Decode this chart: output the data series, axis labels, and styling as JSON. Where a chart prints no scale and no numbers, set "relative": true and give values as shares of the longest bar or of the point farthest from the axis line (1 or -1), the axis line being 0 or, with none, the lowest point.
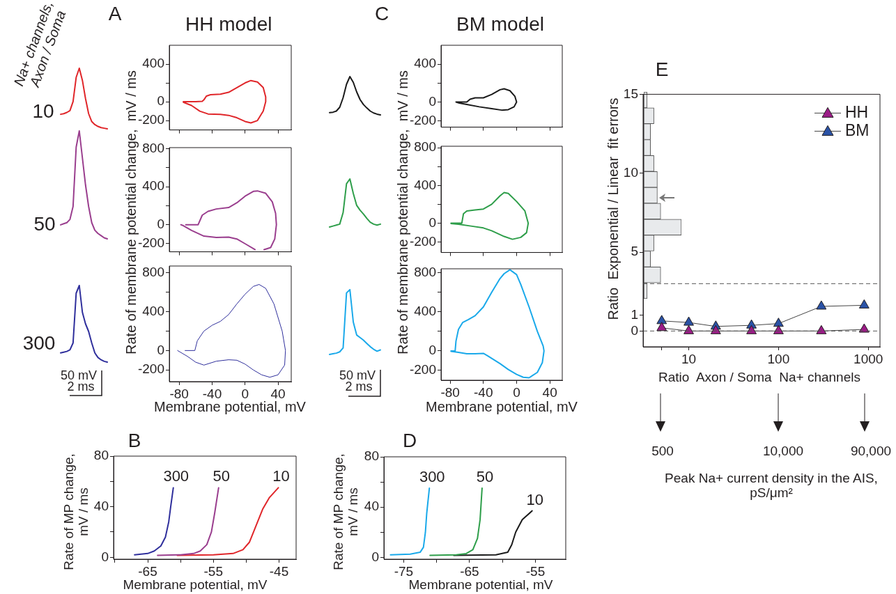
{
  "chart_data": [
    {
      "type": "line",
      "relative": true,
      "categories": [
        null,
        null,
        null,
        null,
        null,
        null,
        null,
        null,
        null,
        null,
        null,
        null,
        null,
        null,
        null,
        null
      ],
      "annotations": [
        "Na+ channels, Axon / Soma",
        "10"
      ],
      "series": [
        {
          "color": "#e0262a",
          "values": [
            0.24,
            0.25,
            0.27,
            0.3,
            0.45,
            0.85,
            1.0,
            0.8,
            0.5,
            0.25,
            0.12,
            0.07,
            0.04,
            0.02,
            0.01,
            0
          ]
        }
      ]
    },
    {
      "type": "line",
      "relative": true,
      "categories": [
        null,
        null,
        null,
        null,
        null,
        null,
        null,
        null,
        null,
        null,
        null,
        null,
        null,
        null,
        null,
        null
      ],
      "annotations": [
        "50"
      ],
      "series": [
        {
          "color": "#9a3e8e",
          "values": [
            0.13,
            0.14,
            0.15,
            0.18,
            0.3,
            0.85,
            1.0,
            0.75,
            0.5,
            0.3,
            0.15,
            0.08,
            0.05,
            0.03,
            0.01,
            0
          ]
        }
      ]
    },
    {
      "type": "line",
      "relative": true,
      "categories": [
        null,
        null,
        null,
        null,
        null,
        null,
        null,
        null,
        null,
        null,
        null,
        null,
        null,
        null,
        null,
        null
      ],
      "annotations": [
        "300",
        "50 mV",
        "2 ms"
      ],
      "series": [
        {
          "color": "#2f2f9c",
          "values": [
            0.12,
            0.13,
            0.14,
            0.16,
            0.25,
            0.9,
            1.0,
            0.65,
            0.5,
            0.4,
            0.25,
            0.12,
            0.06,
            0.03,
            0.01,
            0
          ]
        }
      ]
    },
    {
      "type": "line",
      "title": "HH model",
      "annotations": [
        "A"
      ],
      "xlim": [
        -92,
        56
      ],
      "ylim": [
        -300,
        600
      ],
      "xticks": [
        -80,
        -40,
        0,
        40
      ],
      "yticks": [
        -200,
        0,
        {
          "value": 200,
          "label": null
        },
        400
      ],
      "tick_labels": "y",
      "series": [
        {
          "color": "#e0262a",
          "x": [
            -75,
            -60,
            -52,
            -50,
            -47,
            -42,
            -30,
            -20,
            -10,
            0,
            7,
            15,
            22,
            25,
            25,
            22,
            15,
            7,
            0,
            -10,
            -20,
            -30,
            -45,
            -55,
            -65,
            -75
          ],
          "values": [
            0,
            0,
            5,
            20,
            60,
            75,
            80,
            100,
            150,
            200,
            225,
            210,
            150,
            50,
            0,
            -100,
            -200,
            -225,
            -210,
            -170,
            -145,
            -135,
            -130,
            -100,
            -40,
            -5
          ]
        }
      ]
    },
    {
      "type": "line",
      "ylabel": "Rate of membrane potential change,  mV / ms",
      "xlim": [
        -92,
        56
      ],
      "ylim": [
        -285,
        810
      ],
      "xticks": [
        -80,
        -40,
        0,
        40
      ],
      "yticks": [
        -200,
        0,
        {
          "value": 200,
          "label": null
        },
        400,
        {
          "value": 600,
          "label": null
        },
        800
      ],
      "tick_labels": "y",
      "series": [
        {
          "color": "#9a3e8e",
          "x": [
            -72,
            -57,
            -52,
            -45,
            -35,
            -20,
            -10,
            0,
            10,
            15,
            25,
            33,
            37,
            38,
            36,
            31,
            23,
            17,
            12,
            0,
            -10,
            -20,
            -35,
            -50,
            -65,
            -75,
            -78
          ],
          "values": [
            0,
            0,
            100,
            140,
            165,
            180,
            230,
            300,
            350,
            355,
            330,
            240,
            120,
            0,
            -150,
            -240,
            -262,
            null,
            -262,
            -200,
            -150,
            -130,
            -135,
            -120,
            -60,
            -10,
            0
          ]
        }
      ]
    },
    {
      "type": "line",
      "xlabel": "Membrane potential, mV",
      "xlim": [
        -92,
        56
      ],
      "ylim": [
        -320,
        870
      ],
      "xticks": [
        -80,
        -40,
        0,
        40
      ],
      "yticks": [
        -200,
        0,
        {
          "value": 200,
          "label": null
        },
        400,
        {
          "value": 600,
          "label": null
        },
        800
      ],
      "series": [
        {
          "color": "#2f2f9c",
          "x": [
            -73,
            -61,
            -58,
            -50,
            -40,
            -30,
            -20,
            -10,
            0,
            10,
            17,
            25,
            35,
            45,
            49,
            48,
            40,
            30,
            20,
            10,
            0,
            -10,
            -20,
            -35,
            -50,
            -60,
            -70,
            -82
          ],
          "values": [
            0,
            0,
            100,
            200,
            260,
            300,
            370,
            480,
            580,
            660,
            680,
            640,
            480,
            200,
            0,
            -150,
            -250,
            -275,
            -250,
            -200,
            -140,
            -100,
            -95,
            -110,
            -150,
            -120,
            -60,
            0
          ]
        }
      ]
    },
    {
      "type": "line",
      "relative": true,
      "categories": [
        null,
        null,
        null,
        null,
        null,
        null,
        null,
        null,
        null,
        null,
        null,
        null,
        null,
        null,
        null,
        null
      ],
      "series": [
        {
          "color": "#1a1a1a",
          "values": [
            0.06,
            0.07,
            0.1,
            0.2,
            0.45,
            0.8,
            1.0,
            0.85,
            0.6,
            0.4,
            0.27,
            0.18,
            0.1,
            0.05,
            0.02,
            0
          ]
        }
      ]
    },
    {
      "type": "line",
      "relative": true,
      "categories": [
        null,
        null,
        null,
        null,
        null,
        null,
        null,
        null,
        null,
        null,
        null,
        null,
        null,
        null,
        null,
        null
      ],
      "series": [
        {
          "color": "#2e9e4a",
          "values": [
            0,
            0.02,
            0.04,
            0.06,
            0.3,
            0.9,
            1.0,
            0.7,
            0.45,
            0.35,
            0.27,
            0.18,
            0.1,
            0.06,
            0.04,
            0.06
          ]
        }
      ]
    },
    {
      "type": "line",
      "relative": true,
      "categories": [
        null,
        null,
        null,
        null,
        null,
        null,
        null,
        null,
        null,
        null,
        null,
        null,
        null,
        null,
        null,
        null
      ],
      "annotations": [
        "50 mV",
        "2 ms"
      ],
      "series": [
        {
          "color": "#1aa9ea",
          "values": [
            0,
            0.01,
            0.02,
            0.04,
            0.1,
            0.95,
            1.0,
            0.5,
            0.3,
            0.26,
            0.22,
            0.17,
            0.12,
            0.08,
            0.05,
            0.07
          ]
        }
      ]
    },
    {
      "type": "line",
      "title": "BM model",
      "annotations": [
        "C"
      ],
      "xlim": [
        -91,
        55
      ],
      "ylim": [
        -265,
        600
      ],
      "xticks": [
        -80,
        -40,
        0,
        40
      ],
      "yticks": [
        -200,
        0,
        {
          "value": 200,
          "label": null
        },
        400
      ],
      "tick_labels": "y",
      "series": [
        {
          "color": "#1a1a1a",
          "x": [
            -73,
            -60,
            -56,
            -50,
            -40,
            -30,
            -20,
            -15,
            -8,
            -2,
            0,
            -3,
            -10,
            -18,
            -30,
            -45,
            -60,
            -70,
            -72
          ],
          "values": [
            0,
            0,
            30,
            45,
            45,
            80,
            130,
            140,
            120,
            60,
            0,
            -50,
            -80,
            -85,
            -70,
            -50,
            -25,
            -8,
            -3
          ]
        }
      ]
    },
    {
      "type": "line",
      "ylabel": "Rate of membrane potential change,  mV / ms",
      "xlim": [
        -91,
        55
      ],
      "ylim": [
        -310,
        815
      ],
      "xticks": [
        -80,
        -40,
        0,
        40
      ],
      "yticks": [
        -200,
        0,
        {
          "value": 200,
          "label": null
        },
        400,
        {
          "value": 600,
          "label": null
        },
        800
      ],
      "tick_labels": "y",
      "series": [
        {
          "color": "#2e9e4a",
          "x": [
            -79,
            -67,
            -66,
            -64,
            -60,
            -50,
            -40,
            -30,
            -20,
            -15,
            -10,
            0,
            10,
            14,
            12,
            5,
            -5,
            -15,
            -30,
            -40,
            -55,
            -70,
            -79
          ],
          "values": [
            0,
            0,
            0,
            100,
            130,
            140,
            150,
            200,
            290,
            325,
            315,
            230,
            130,
            0,
            -100,
            -150,
            -170,
            -140,
            -80,
            -50,
            -30,
            -10,
            -3
          ]
        }
      ]
    },
    {
      "type": "line",
      "xlabel": "Membrane potential, mV",
      "xlim": [
        -91,
        55
      ],
      "ylim": [
        -300,
        840
      ],
      "xticks": [
        -80,
        -40,
        0,
        40
      ],
      "yticks": [
        -200,
        0,
        {
          "value": 200,
          "label": null
        },
        400,
        {
          "value": 600,
          "label": null
        },
        800
      ],
      "series": [
        {
          "color": "#1aa9ea",
          "x": [
            -79,
            -74,
            -73,
            -70,
            -65,
            -58,
            -50,
            -40,
            -30,
            -20,
            -15,
            -8,
            0,
            5,
            15,
            25,
            32,
            33,
            31,
            25,
            15,
            8,
            0,
            -10,
            -20,
            -35,
            -40,
            -50,
            -60,
            -70,
            -79
          ],
          "values": [
            0,
            0,
            100,
            220,
            290,
            320,
            360,
            450,
            600,
            740,
            790,
            830,
            780,
            680,
            450,
            200,
            50,
            0,
            -120,
            -220,
            -275,
            -270,
            -240,
            -190,
            -130,
            -50,
            -25,
            -30,
            -30,
            -15,
            -5
          ]
        }
      ]
    },
    {
      "type": "line",
      "annotations": [
        "B"
      ],
      "ylabel": "Rate of MP change, mV / ms",
      "xlabel": "Membrane potential, mV",
      "xlim": [
        -70.2,
        -42.4
      ],
      "ylim": [
        -1.5,
        80
      ],
      "xticks": [
        {
          "value": -70,
          "label": null
        },
        -65,
        {
          "value": -60,
          "label": null
        },
        -55,
        {
          "value": -50,
          "label": null
        },
        -45
      ],
      "yticks": [
        0,
        {
          "value": 20,
          "label": null
        },
        40,
        {
          "value": 60,
          "label": null
        },
        80
      ],
      "series": [
        {
          "name": "300",
          "color": "#2f2f9c",
          "x": [
            -67,
            -66,
            -65,
            -64,
            -63,
            -62.3,
            -61.8,
            -61.5,
            -61.1
          ],
          "values": [
            2,
            2.5,
            3,
            5,
            9,
            16,
            28,
            40,
            55
          ]
        },
        {
          "name": "50",
          "color": "#9a3e8e",
          "x": [
            -63.5,
            -60,
            -58,
            -57,
            -56,
            -55.3,
            -54.8,
            -54.2
          ],
          "values": [
            1.5,
            2,
            3,
            5,
            10,
            20,
            35,
            55
          ]
        },
        {
          "name": "10",
          "color": "#e0262a",
          "x": [
            -60.5,
            -55,
            -52,
            -50.5,
            -49.5,
            -48.5,
            -47.5,
            -46.5,
            -45.1
          ],
          "values": [
            1.5,
            2,
            3,
            6,
            12,
            25,
            38,
            47,
            55
          ]
        }
      ]
    },
    {
      "type": "line",
      "annotations": [
        "D"
      ],
      "ylabel": "Rate of MP change, mV / ms",
      "xlabel": "Membrane potential, mV",
      "xlim": [
        -78,
        -50.4
      ],
      "ylim": [
        -1.5,
        80
      ],
      "xticks": [
        -75,
        {
          "value": -70,
          "label": null
        },
        -65,
        {
          "value": -60,
          "label": null
        },
        -55
      ],
      "yticks": [
        0,
        {
          "value": 20,
          "label": null
        },
        40,
        {
          "value": 60,
          "label": null
        },
        80
      ],
      "series": [
        {
          "name": "300",
          "color": "#1aa9ea",
          "x": [
            -77,
            -74,
            -72.5,
            -72,
            -71.7,
            -71.5,
            -71.1
          ],
          "values": [
            2,
            2.5,
            4,
            8,
            20,
            35,
            55
          ]
        },
        {
          "name": "50",
          "color": "#2e9e4a",
          "x": [
            -71,
            -67,
            -65.5,
            -64.5,
            -63.8,
            -63.4,
            -63.1
          ],
          "values": [
            1.5,
            2,
            3,
            6,
            15,
            30,
            55
          ]
        },
        {
          "name": "10",
          "color": "#1a1a1a",
          "x": [
            -67.4,
            -61,
            -59.2,
            -58.6,
            -58,
            -57,
            -55.5
          ],
          "values": [
            1.5,
            2,
            4,
            10,
            20,
            30,
            37
          ]
        }
      ]
    },
    {
      "type": "bar",
      "orientation": "horizontal",
      "relative": true,
      "categories": [
        null,
        null,
        null,
        null,
        null,
        null,
        null,
        null,
        null,
        null,
        null,
        null,
        null
      ],
      "values": [
        0.09,
        0.27,
        0.18,
        0.18,
        0.27,
        0.36,
        0.36,
        0.45,
        1,
        0.27,
        0.18,
        0.45,
        0.09
      ],
      "color": "#e8eaec"
    },
    {
      "type": "line",
      "annotations": [
        "E"
      ],
      "ylabel": "Ratio  Exponential / Linear  fit errors",
      "xlabel": "Ratio  Axon / Soma  Na+ channels",
      "log": "x",
      "xlim": [
        3.1,
        1350
      ],
      "xticks": [
        {
          "value": 5,
          "label": null
        },
        10,
        100,
        1000
      ],
      "ylim": [
        -1,
        15
      ],
      "yticks": [
        0,
        1,
        5,
        10,
        15
      ],
      "marker": "triangle",
      "legend": "top right",
      "ref_lines": [
        {
          "axis": "y",
          "value": 0,
          "line_style": "dashed",
          "color": "#555555"
        },
        {
          "axis": "y",
          "value": 3,
          "line_style": "dashed",
          "color": "#555555"
        }
      ],
      "series": [
        {
          "name": "HH",
          "color": "#9b1c87",
          "x": [
            5,
            10,
            20,
            50,
            100,
            300,
            900
          ],
          "values": [
            0.2,
            0,
            0,
            0,
            0,
            0,
            0.1
          ]
        },
        {
          "name": "BM",
          "color": "#2a52a6",
          "x": [
            5,
            10,
            20,
            50,
            100,
            300,
            900
          ],
          "values": [
            0.64,
            0.54,
            0.29,
            0.36,
            0.47,
            1.56,
            1.63
          ]
        }
      ]
    },
    {
      "type": "other",
      "annotations": [
        "500",
        "10,000",
        "90,000",
        "Peak Na+ current density in the AIS, pS/μm²"
      ]
    }
  ]
}
